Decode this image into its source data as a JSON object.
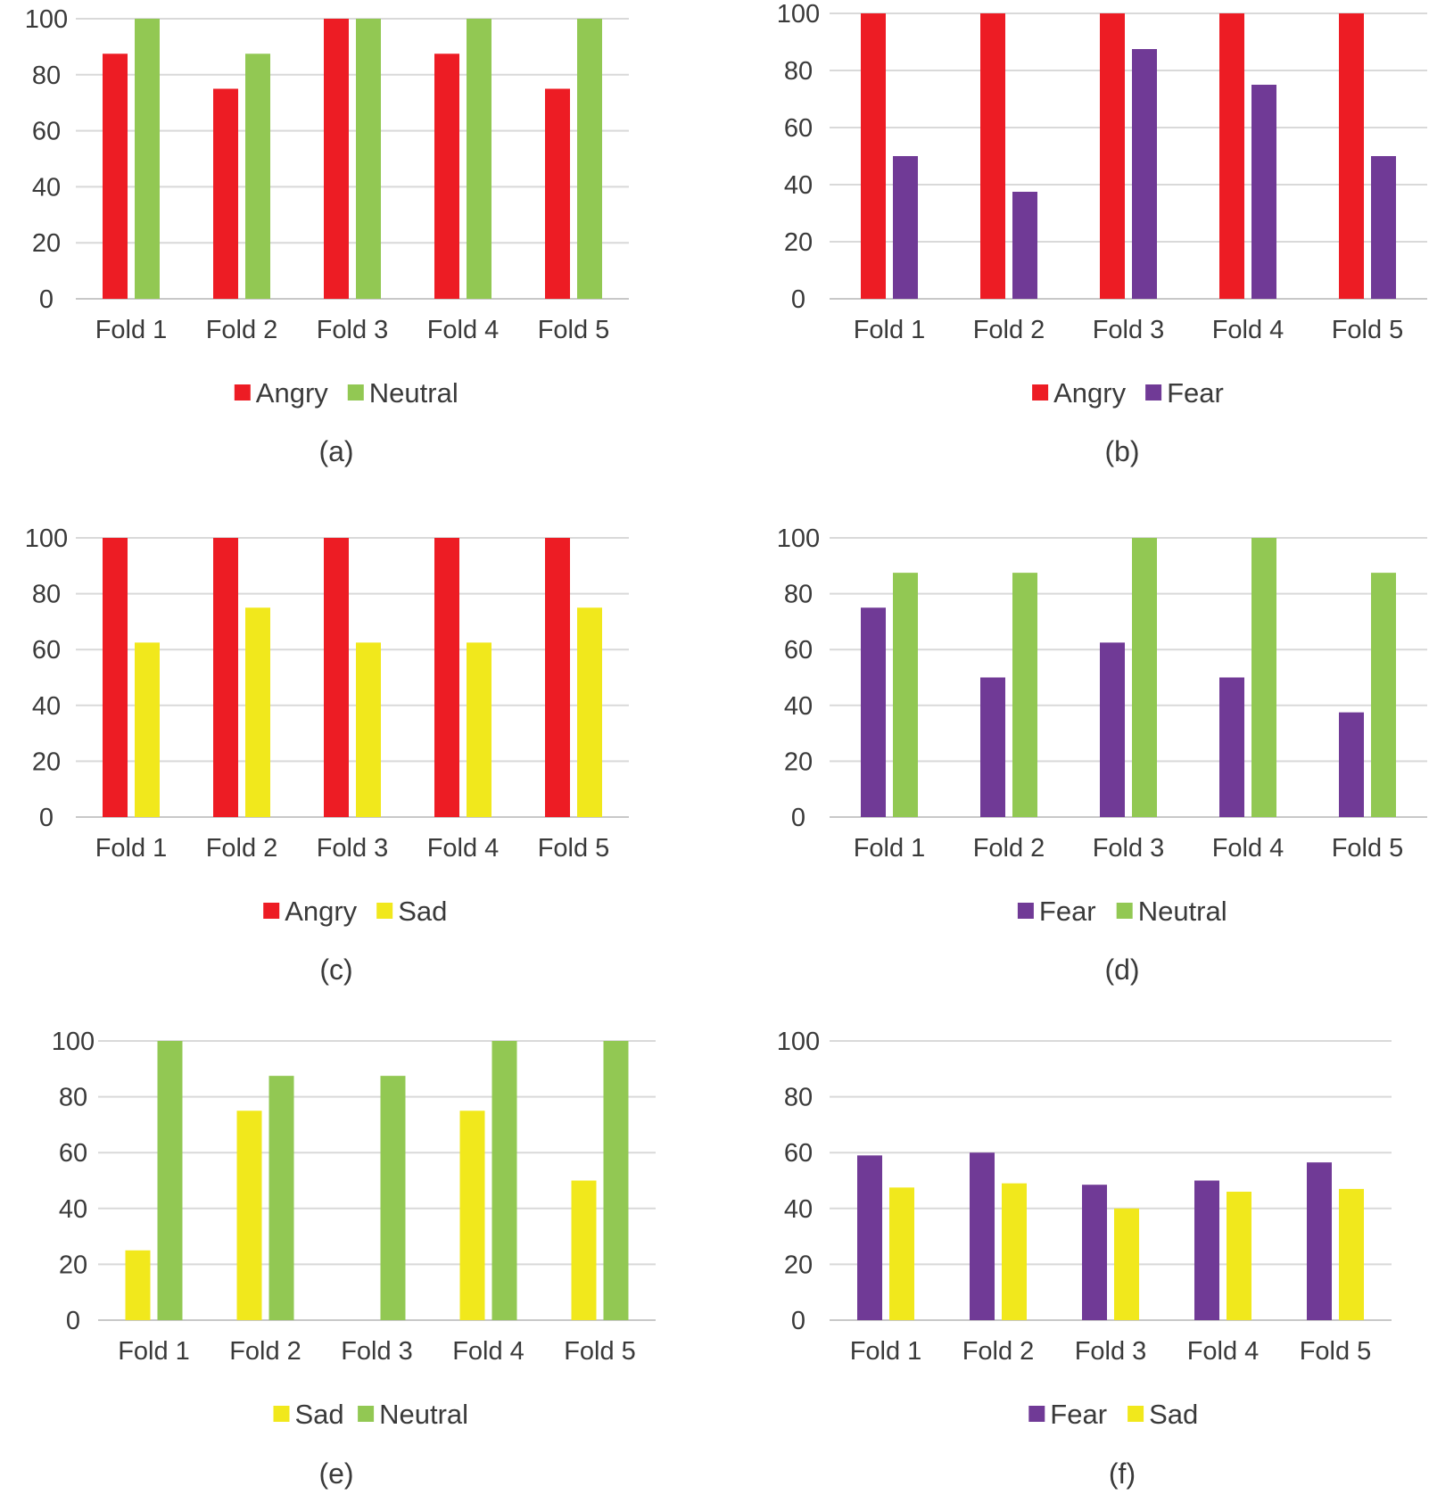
{
  "colors": {
    "angry": "#ED1C24",
    "neutral": "#92C853",
    "fear": "#703A96",
    "sad": "#F1E81C",
    "grid": "#D9D9D9",
    "axis": "#C8C8C8"
  },
  "chart_data": [
    {
      "type": "bar",
      "caption": "(a)",
      "categories": [
        "Fold 1",
        "Fold 2",
        "Fold 3",
        "Fold 4",
        "Fold 5"
      ],
      "series": [
        {
          "name": "Angry",
          "color": "#ED1C24",
          "values": [
            87.5,
            75,
            100,
            87.5,
            75
          ]
        },
        {
          "name": "Neutral",
          "color": "#92C853",
          "values": [
            100,
            87.5,
            100,
            100,
            100
          ]
        }
      ],
      "yticks": [
        "0",
        "20",
        "40",
        "60",
        "80",
        "100"
      ],
      "ylim": [
        0,
        100
      ],
      "grid": true,
      "legend": "bottom"
    },
    {
      "type": "bar",
      "caption": "(b)",
      "categories": [
        "Fold 1",
        "Fold 2",
        "Fold 3",
        "Fold 4",
        "Fold 5"
      ],
      "series": [
        {
          "name": "Angry",
          "color": "#ED1C24",
          "values": [
            100,
            100,
            100,
            100,
            100
          ]
        },
        {
          "name": "Fear",
          "color": "#703A96",
          "values": [
            50,
            37.5,
            87.5,
            75,
            50
          ]
        }
      ],
      "yticks": [
        "0",
        "20",
        "40",
        "60",
        "80",
        "100"
      ],
      "ylim": [
        0,
        100
      ],
      "grid": true,
      "legend": "bottom"
    },
    {
      "type": "bar",
      "caption": "(c)",
      "categories": [
        "Fold 1",
        "Fold 2",
        "Fold 3",
        "Fold 4",
        "Fold 5"
      ],
      "series": [
        {
          "name": "Angry",
          "color": "#ED1C24",
          "values": [
            100,
            100,
            100,
            100,
            100
          ]
        },
        {
          "name": "Sad",
          "color": "#F1E81C",
          "values": [
            62.5,
            75,
            62.5,
            62.5,
            75
          ]
        }
      ],
      "yticks": [
        "0",
        "20",
        "40",
        "60",
        "80",
        "100"
      ],
      "ylim": [
        0,
        100
      ],
      "grid": true,
      "legend": "bottom"
    },
    {
      "type": "bar",
      "caption": "(d)",
      "categories": [
        "Fold 1",
        "Fold 2",
        "Fold 3",
        "Fold 4",
        "Fold 5"
      ],
      "series": [
        {
          "name": "Fear",
          "color": "#703A96",
          "values": [
            75,
            50,
            62.5,
            50,
            37.5
          ]
        },
        {
          "name": "Neutral",
          "color": "#92C853",
          "values": [
            87.5,
            87.5,
            100,
            100,
            87.5
          ]
        }
      ],
      "yticks": [
        "0",
        "20",
        "40",
        "60",
        "80",
        "100"
      ],
      "ylim": [
        0,
        100
      ],
      "grid": true,
      "legend": "bottom"
    },
    {
      "type": "bar",
      "caption": "(e)",
      "categories": [
        "Fold 1",
        "Fold 2",
        "Fold 3",
        "Fold 4",
        "Fold 5"
      ],
      "series": [
        {
          "name": "Sad",
          "color": "#F1E81C",
          "values": [
            25,
            75,
            0,
            75,
            50
          ]
        },
        {
          "name": "Neutral",
          "color": "#92C853",
          "values": [
            100,
            87.5,
            87.5,
            100,
            100
          ]
        }
      ],
      "yticks": [
        "0",
        "20",
        "40",
        "60",
        "80",
        "100"
      ],
      "ylim": [
        0,
        100
      ],
      "grid": true,
      "legend": "bottom"
    },
    {
      "type": "bar",
      "caption": "(f)",
      "categories": [
        "Fold 1",
        "Fold 2",
        "Fold 3",
        "Fold 4",
        "Fold 5"
      ],
      "series": [
        {
          "name": "Fear",
          "color": "#703A96",
          "values": [
            59,
            60,
            48.5,
            50,
            56.5
          ]
        },
        {
          "name": "Sad",
          "color": "#F1E81C",
          "values": [
            47.5,
            49,
            40,
            46,
            47
          ]
        }
      ],
      "yticks": [
        "0",
        "20",
        "40",
        "60",
        "80",
        "100"
      ],
      "ylim": [
        0,
        100
      ],
      "grid": true,
      "legend": "bottom"
    }
  ]
}
